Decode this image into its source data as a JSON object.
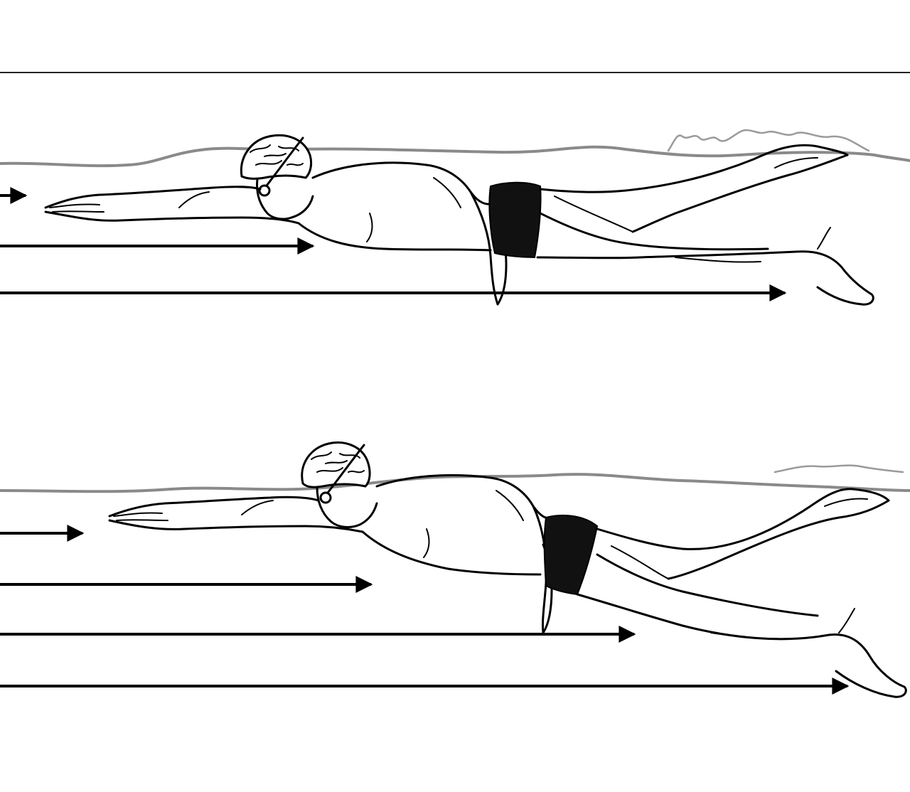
{
  "figure": {
    "panels": [
      {
        "name": "top-panel",
        "arrows": 3
      },
      {
        "name": "bottom-panel",
        "arrows": 4
      }
    ]
  }
}
